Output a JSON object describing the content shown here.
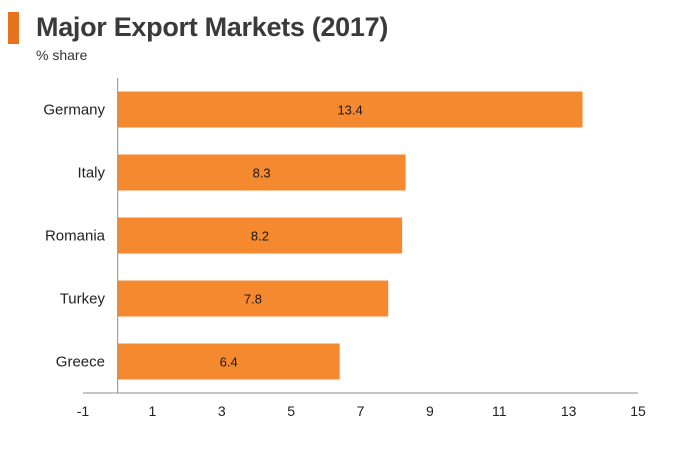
{
  "header": {
    "title": "Major Export Markets (2017)",
    "subtitle": "% share",
    "accent_color": "#e8731f"
  },
  "chart_data": {
    "type": "bar",
    "orientation": "horizontal",
    "title": "Major Export Markets (2017)",
    "subtitle": "% share",
    "xlabel": "",
    "ylabel": "",
    "categories": [
      "Germany",
      "Italy",
      "Romania",
      "Turkey",
      "Greece"
    ],
    "values": [
      13.4,
      8.3,
      8.2,
      7.8,
      6.4
    ],
    "data_labels": [
      "13.4",
      "8.3",
      "8.2",
      "7.8",
      "6.4"
    ],
    "xlim": [
      -1,
      15
    ],
    "xticks": [
      -1,
      1,
      3,
      5,
      7,
      9,
      11,
      13,
      15
    ],
    "grid": false,
    "legend": "none",
    "bar_color": "#f5892f",
    "axis_color": "#8c8c8c"
  }
}
